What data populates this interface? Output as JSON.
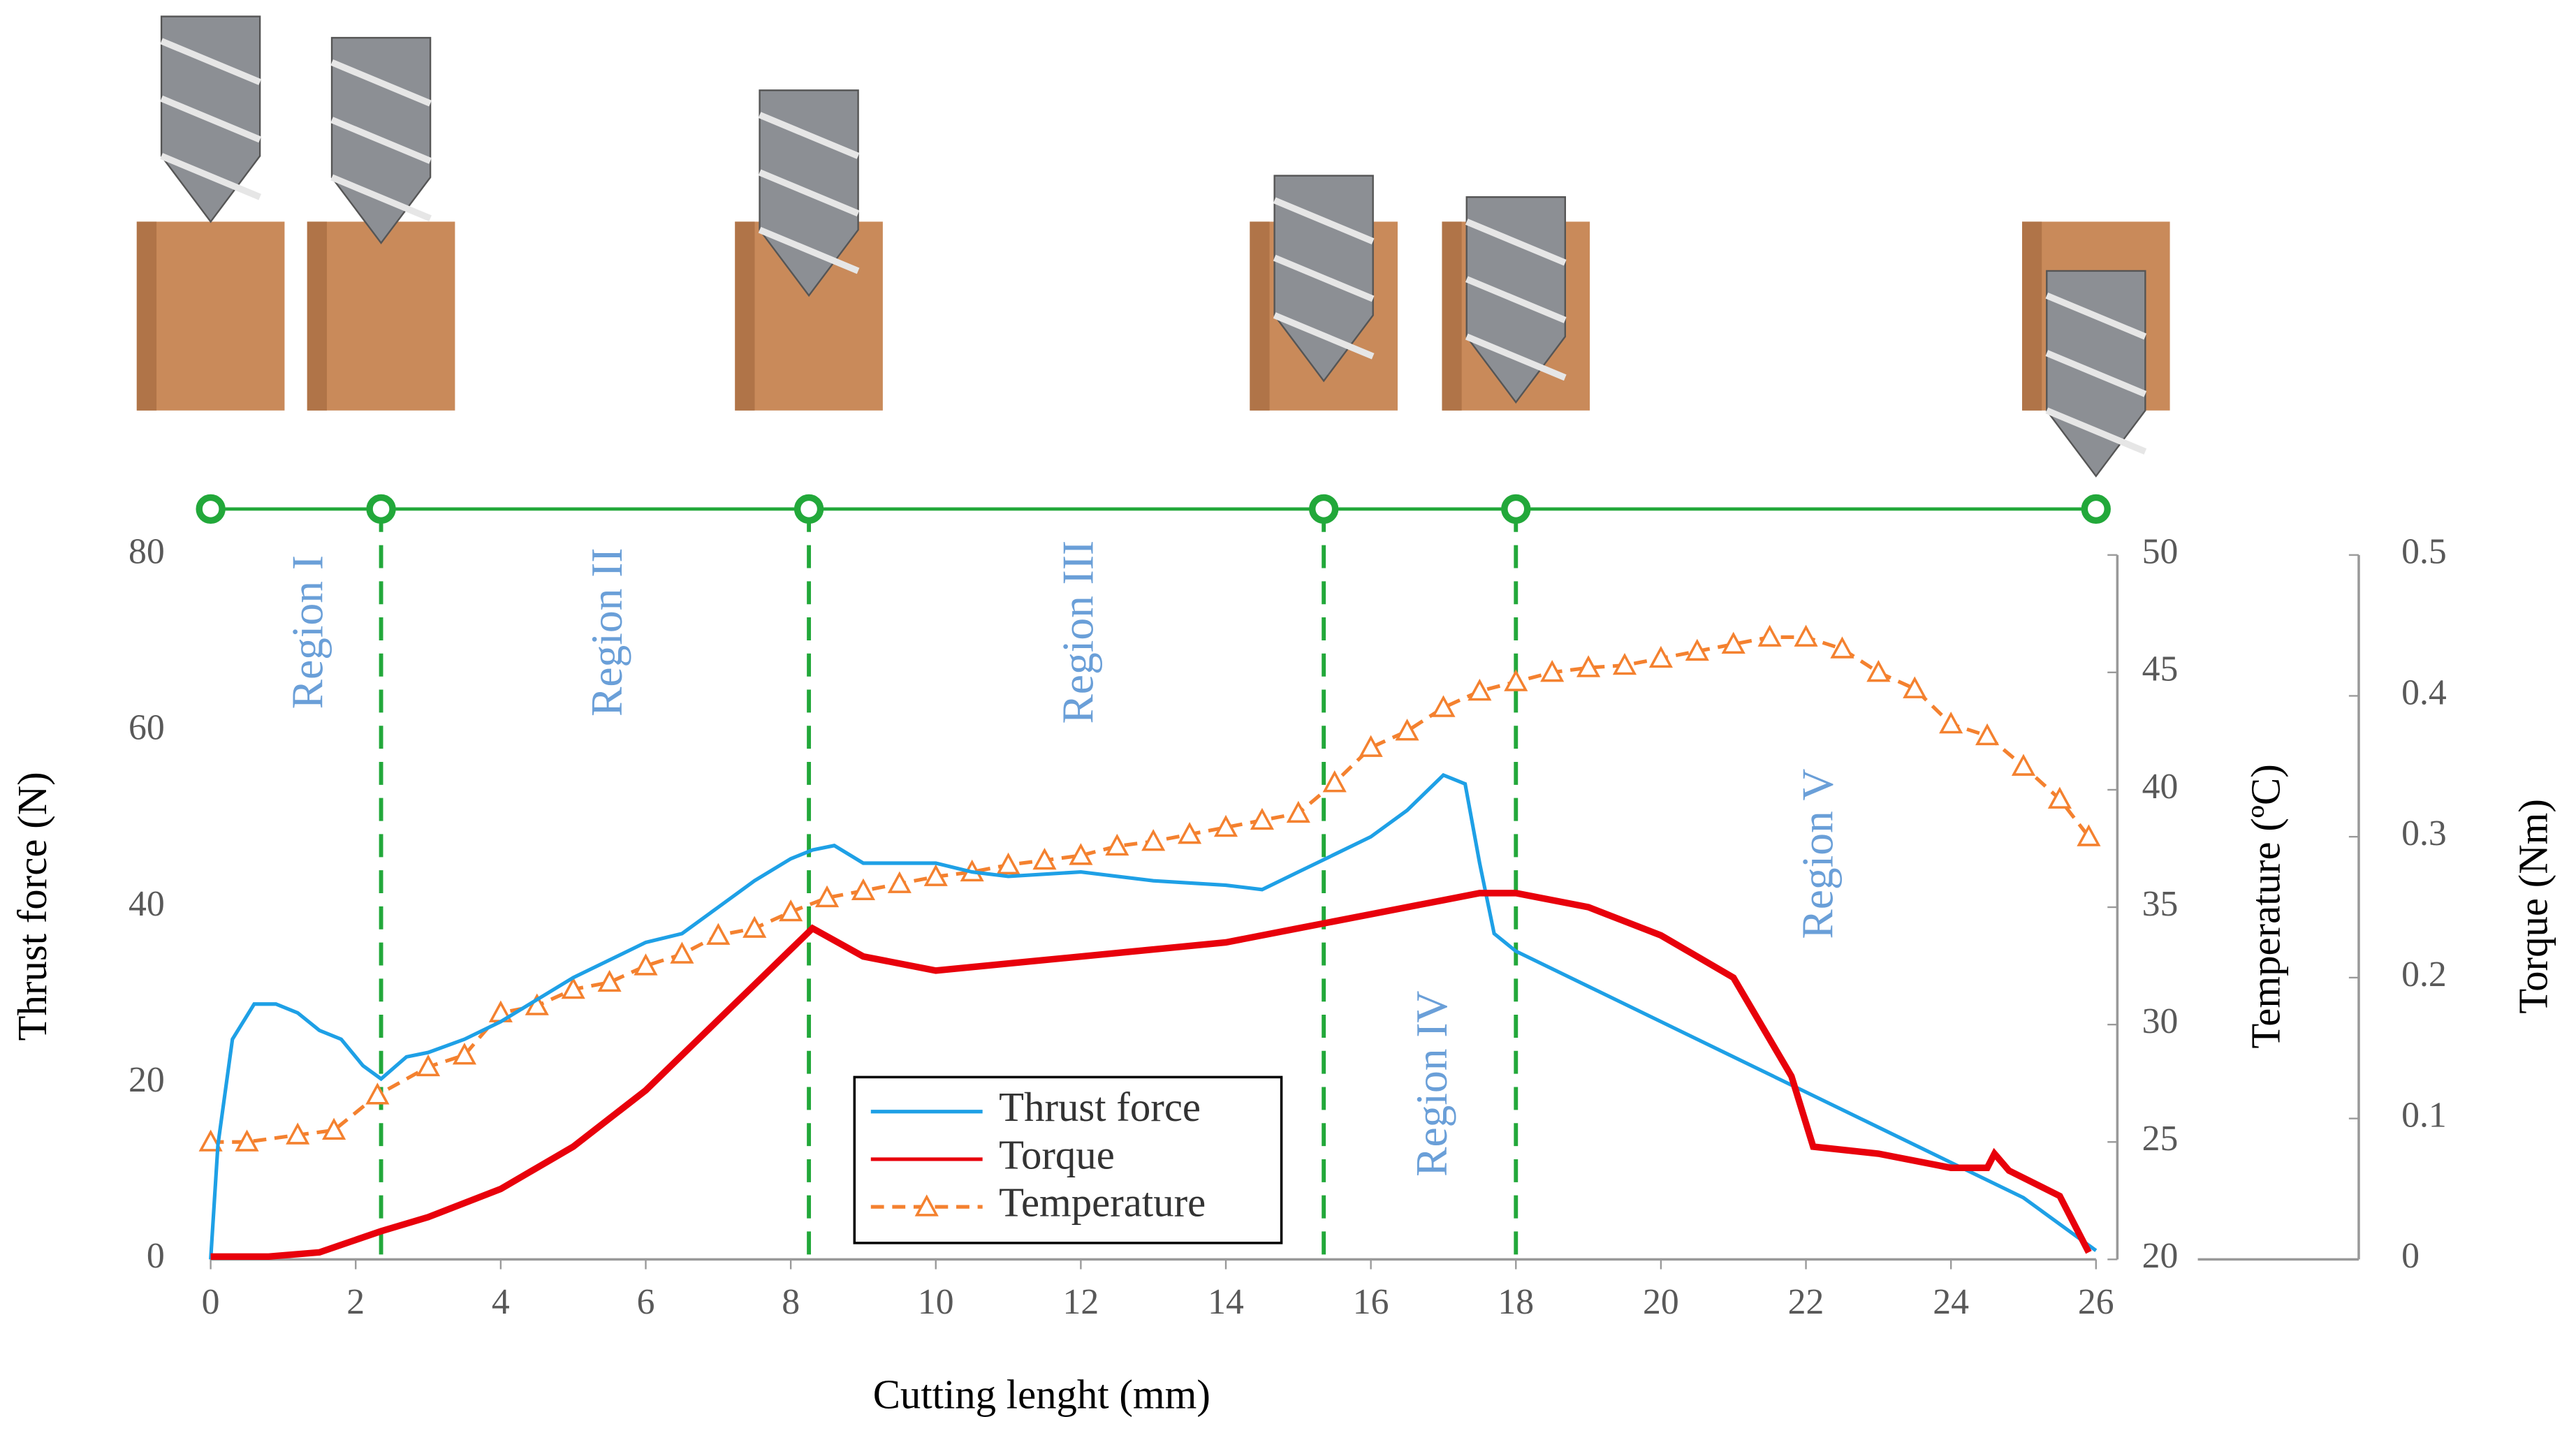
{
  "chart_data": {
    "type": "line",
    "x_label": "Cutting lenght (mm)",
    "y_label": "Thrust force (N)",
    "y2_label": "Temperature (ºC)",
    "y3_label": "Torque (Nm)",
    "xlim": [
      0,
      26
    ],
    "xticks": [
      0,
      2,
      4,
      6,
      8,
      10,
      12,
      14,
      16,
      18,
      20,
      22,
      24,
      26
    ],
    "ylim": [
      0,
      80
    ],
    "yticks": [
      0,
      20,
      40,
      60,
      80
    ],
    "y2lim": [
      20,
      50
    ],
    "y2ticks": [
      20,
      25,
      30,
      35,
      40,
      45,
      50
    ],
    "y3lim": [
      0,
      0.5
    ],
    "y3ticks": [
      0,
      0.1,
      0.2,
      0.3,
      0.4,
      0.5
    ],
    "region_color": "#22a83a",
    "region_boundaries": [
      0,
      2.35,
      8.25,
      15.35,
      18,
      26
    ],
    "regions": [
      "Region I",
      "Region II",
      "Region III",
      "Region IV",
      "Region V"
    ],
    "series": [
      {
        "name": "Thrust force",
        "color": "#1ea0e6",
        "x": [
          0,
          0.1,
          0.3,
          0.6,
          0.9,
          1.2,
          1.5,
          1.8,
          2.1,
          2.35,
          2.7,
          3,
          3.5,
          4,
          4.5,
          5,
          5.5,
          6,
          6.5,
          7,
          7.5,
          8,
          8.3,
          8.6,
          9,
          9.5,
          10,
          10.5,
          11,
          12,
          13,
          14,
          14.5,
          15,
          15.5,
          16,
          16.5,
          17,
          17.3,
          17.5,
          17.7,
          18,
          19,
          20,
          21,
          22,
          23,
          24,
          25,
          26
        ],
        "values": [
          0,
          13,
          25,
          29,
          29,
          28,
          26,
          25,
          22,
          20.5,
          23,
          23.5,
          25,
          27,
          29.5,
          32,
          34,
          36,
          37,
          40,
          43,
          45.5,
          46.5,
          47,
          45,
          45,
          45,
          44,
          43.5,
          44,
          43,
          42.5,
          42,
          44,
          46,
          48,
          51,
          55,
          54,
          45,
          37,
          35,
          31,
          27,
          23,
          19,
          15,
          11,
          7,
          1
        ]
      },
      {
        "name": "Torque",
        "color": "#e8000b",
        "axis": "y3",
        "x": [
          0,
          0.8,
          1.5,
          2.35,
          3,
          4,
          5,
          6,
          7,
          8,
          8.3,
          9,
          10,
          11,
          12,
          13,
          14,
          15,
          16,
          17,
          17.5,
          18,
          19,
          20,
          21,
          21.8,
          22.1,
          23,
          24,
          24.5,
          24.6,
          24.8,
          25.5,
          25.9
        ],
        "values": [
          0.002,
          0.002,
          0.005,
          0.02,
          0.03,
          0.05,
          0.08,
          0.12,
          0.17,
          0.22,
          0.235,
          0.215,
          0.205,
          0.21,
          0.215,
          0.22,
          0.225,
          0.235,
          0.245,
          0.255,
          0.26,
          0.26,
          0.25,
          0.23,
          0.2,
          0.13,
          0.08,
          0.075,
          0.065,
          0.065,
          0.075,
          0.063,
          0.045,
          0.005
        ]
      },
      {
        "name": "Temperature",
        "color": "#f4812f",
        "axis": "y2",
        "x": [
          0,
          0.5,
          1.2,
          1.7,
          2.3,
          3,
          3.5,
          4,
          4.5,
          5,
          5.5,
          6,
          6.5,
          7,
          7.5,
          8,
          8.5,
          9,
          9.5,
          10,
          10.5,
          11,
          11.5,
          12,
          12.5,
          13,
          13.5,
          14,
          14.5,
          15,
          15.5,
          16,
          16.5,
          17,
          17.5,
          18,
          18.5,
          19,
          19.5,
          20,
          20.5,
          21,
          21.5,
          22,
          22.5,
          23,
          23.5,
          24,
          24.5,
          25,
          25.5,
          25.9
        ],
        "values": [
          25,
          25,
          25.3,
          25.5,
          27,
          28.2,
          28.7,
          30.5,
          30.8,
          31.5,
          31.8,
          32.5,
          33,
          33.8,
          34.1,
          34.8,
          35.4,
          35.7,
          36,
          36.3,
          36.5,
          36.8,
          37,
          37.2,
          37.6,
          37.8,
          38.1,
          38.4,
          38.7,
          39,
          40.3,
          41.8,
          42.5,
          43.5,
          44.2,
          44.6,
          45,
          45.2,
          45.3,
          45.6,
          45.9,
          46.2,
          46.5,
          46.5,
          46,
          45,
          44.3,
          42.8,
          42.3,
          41,
          39.6,
          38
        ]
      }
    ]
  }
}
